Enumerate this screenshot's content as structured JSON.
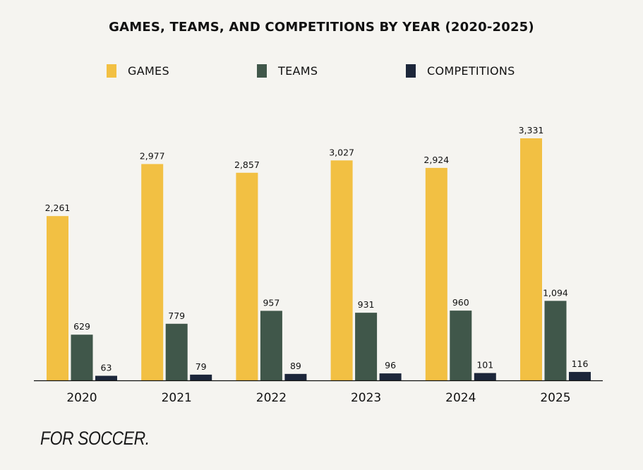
{
  "chart_data": {
    "type": "bar",
    "title": "GAMES, TEAMS, AND COMPETITIONS BY YEAR (2020-2025)",
    "xlabel": "",
    "ylabel": "",
    "categories": [
      "2020",
      "2021",
      "2022",
      "2023",
      "2024",
      "2025"
    ],
    "series": [
      {
        "name": "GAMES",
        "color": "#f2c043",
        "values": [
          2261,
          2977,
          2857,
          3027,
          2924,
          3331
        ],
        "labels": [
          "2,261",
          "2,977",
          "2,857",
          "3,027",
          "2,924",
          "3,331"
        ]
      },
      {
        "name": "TEAMS",
        "color": "#40574a",
        "values": [
          629,
          779,
          957,
          931,
          960,
          1094
        ],
        "labels": [
          "629",
          "779",
          "957",
          "931",
          "960",
          "1,094"
        ]
      },
      {
        "name": "COMPETITIONS",
        "color": "#1c263a",
        "values": [
          63,
          79,
          89,
          96,
          101,
          116
        ],
        "labels": [
          "63",
          "79",
          "89",
          "96",
          "101",
          "116"
        ]
      }
    ],
    "ylim": [
      0,
      3331
    ],
    "grid": false,
    "legend_position": "top-center",
    "y_axis_visible": false,
    "data_labels": true
  },
  "branding": {
    "logo_text": "FOR SOCCER."
  },
  "colors": {
    "background": "#f5f4f0",
    "axis": "#111111",
    "text": "#111111"
  }
}
